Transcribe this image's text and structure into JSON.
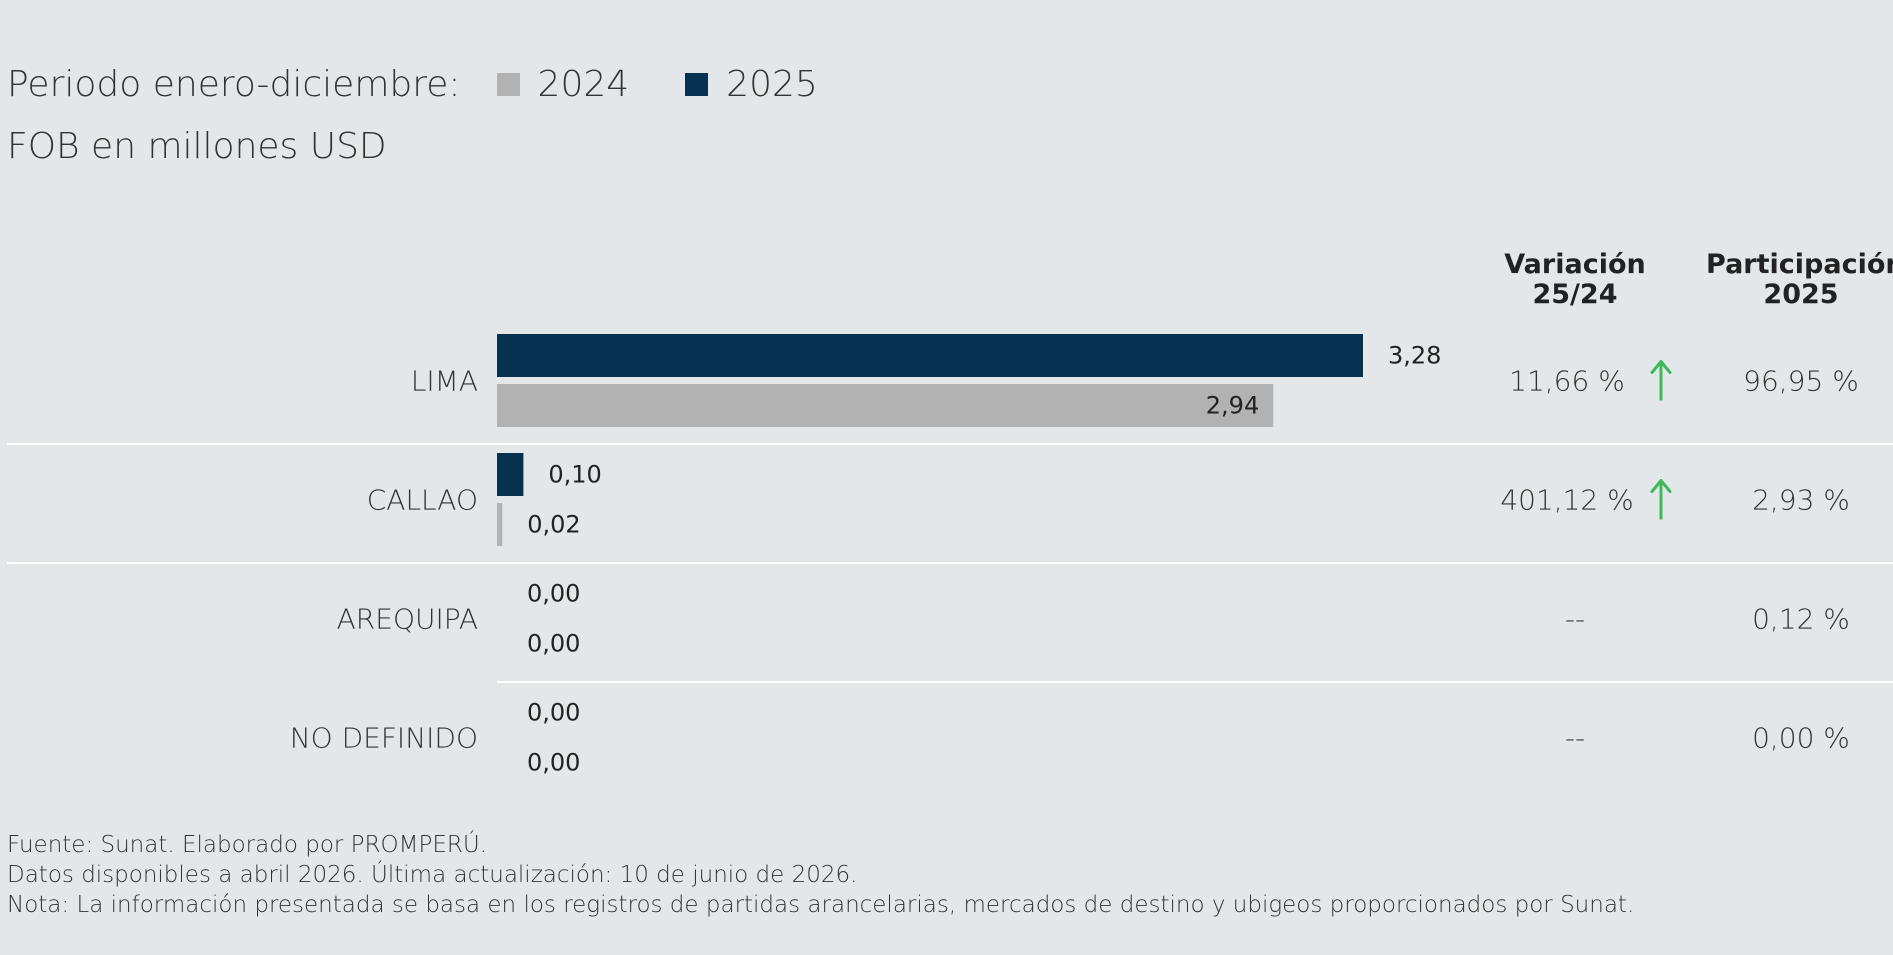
{
  "legend": {
    "label": "Periodo enero-diciembre:",
    "items": [
      {
        "name": "2024",
        "color": "#b2b2b2"
      },
      {
        "name": "2025",
        "color": "#07324f"
      }
    ]
  },
  "subtitle": "FOB en millones USD",
  "columns": {
    "variation_line1": "Variación",
    "variation_line2": "25/24",
    "share_line1": "Participación",
    "share_line2": "2025"
  },
  "chart_data": {
    "type": "bar",
    "orientation": "horizontal",
    "categories": [
      "LIMA",
      "CALLAO",
      "AREQUIPA",
      "NO DEFINIDO"
    ],
    "series": [
      {
        "name": "2025",
        "values": [
          3.28,
          0.1,
          0.0,
          0.0
        ],
        "labels": [
          "3,28",
          "0,10",
          "0,00",
          "0,00"
        ],
        "color": "#07324f"
      },
      {
        "name": "2024",
        "values": [
          2.94,
          0.02,
          0.0,
          0.0
        ],
        "labels": [
          "2,94",
          "0,02",
          "0,00",
          "0,00"
        ],
        "color": "#b2b2b2"
      }
    ],
    "variation": [
      "11,66 %",
      "401,12 %",
      "--",
      "--"
    ],
    "variation_trend": [
      "up",
      "up",
      "none",
      "none"
    ],
    "share": [
      "96,95 %",
      "2,93 %",
      "0,12 %",
      "0,00 %"
    ],
    "trend_color": "#3cb95a",
    "divider_color": "#ffffff"
  },
  "footer": {
    "source": "Fuente: Sunat. Elaborado por PROMPERÚ.",
    "date": "Datos disponibles a abril 2026. Última actualización: 10 de junio de 2026.",
    "note": "Nota: La información presentada se basa en los registros de partidas arancelarias, mercados de destino y ubigeos proporcionados por Sunat."
  }
}
